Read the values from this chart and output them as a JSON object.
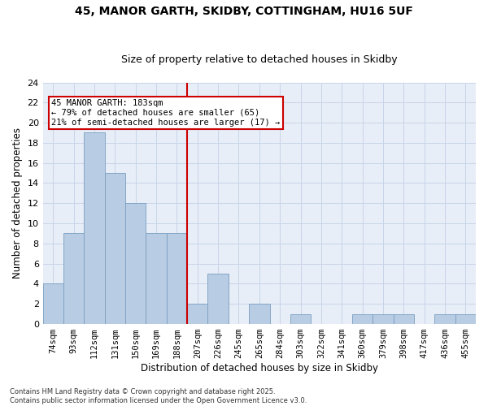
{
  "title_line1": "45, MANOR GARTH, SKIDBY, COTTINGHAM, HU16 5UF",
  "title_line2": "Size of property relative to detached houses in Skidby",
  "xlabel": "Distribution of detached houses by size in Skidby",
  "ylabel": "Number of detached properties",
  "categories": [
    "74sqm",
    "93sqm",
    "112sqm",
    "131sqm",
    "150sqm",
    "169sqm",
    "188sqm",
    "207sqm",
    "226sqm",
    "245sqm",
    "265sqm",
    "284sqm",
    "303sqm",
    "322sqm",
    "341sqm",
    "360sqm",
    "379sqm",
    "398sqm",
    "417sqm",
    "436sqm",
    "455sqm"
  ],
  "values": [
    4,
    9,
    19,
    15,
    12,
    9,
    9,
    2,
    5,
    0,
    2,
    0,
    1,
    0,
    0,
    1,
    1,
    1,
    0,
    1,
    1
  ],
  "bar_color": "#b8cce4",
  "bar_edge_color": "#7a9fc0",
  "grid_color": "#c8d4e8",
  "background_color": "#e8eef8",
  "vline_color": "#cc0000",
  "vline_index": 6,
  "annotation_text": "45 MANOR GARTH: 183sqm\n← 79% of detached houses are smaller (65)\n21% of semi-detached houses are larger (17) →",
  "annotation_box_color": "#cc0000",
  "footnote": "Contains HM Land Registry data © Crown copyright and database right 2025.\nContains public sector information licensed under the Open Government Licence v3.0.",
  "ylim": [
    0,
    24
  ],
  "yticks": [
    0,
    2,
    4,
    6,
    8,
    10,
    12,
    14,
    16,
    18,
    20,
    22,
    24
  ],
  "title_fontsize": 10,
  "subtitle_fontsize": 9,
  "xlabel_fontsize": 8.5,
  "ylabel_fontsize": 8.5,
  "tick_fontsize": 7.5,
  "annot_fontsize": 7.5,
  "footnote_fontsize": 6.0
}
